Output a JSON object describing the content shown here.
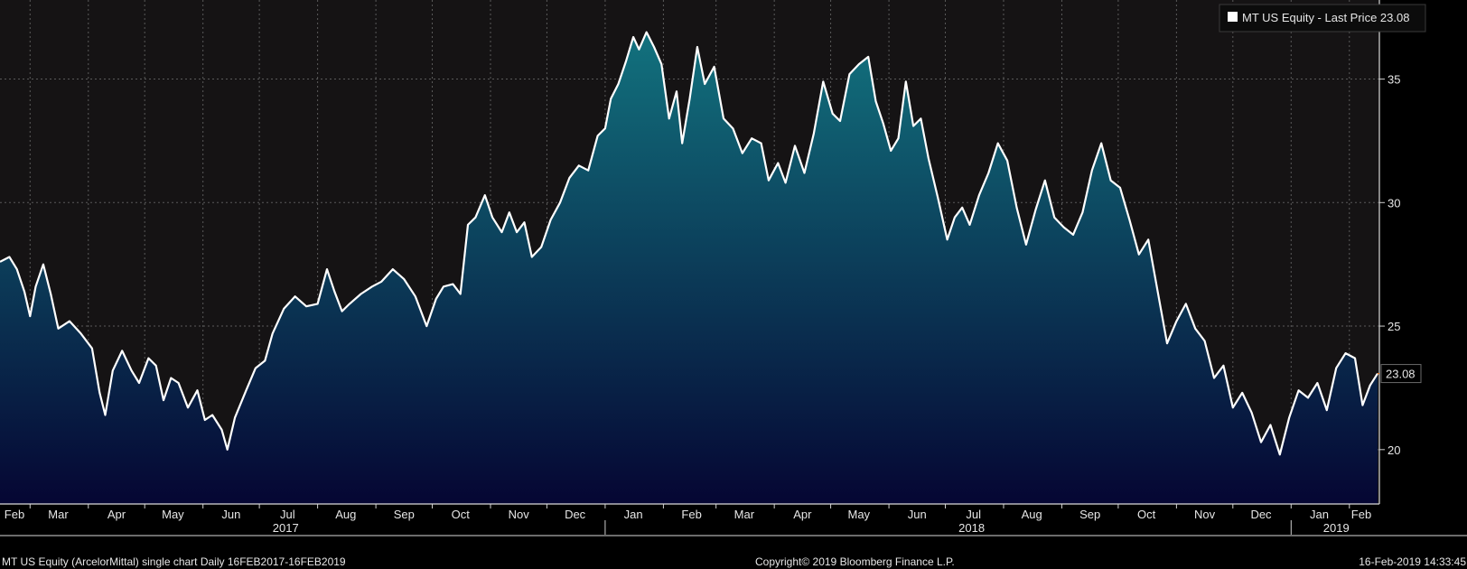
{
  "legend": {
    "label": "MT US Equity  - Last Price 23.08",
    "swatch_color": "#ffffff"
  },
  "last_price_label": "23.08",
  "footer": {
    "left": "MT US Equity (ArcelorMittal) single chart  Daily 16FEB2017-16FEB2019",
    "center": "Copyright© 2019 Bloomberg Finance L.P.",
    "right": "16-Feb-2019 14:33:45"
  },
  "colors": {
    "background": "#000000",
    "plot_background": "#151314",
    "line": "#ffffff",
    "fill_top": "#12727e",
    "fill_bottom": "#050633",
    "grid": "#5a5a5a",
    "last_price_marker": "#f07a1e"
  },
  "chart_data": {
    "type": "area",
    "title": "",
    "xlabel": "",
    "ylabel": "",
    "ylim": [
      17.8,
      38.2
    ],
    "yticks": [
      20,
      25,
      30,
      35
    ],
    "grid": true,
    "legend_position": "top-right",
    "x_range": [
      "2017-02-13",
      "2019-02-16"
    ],
    "x_month_ticks": [
      {
        "label": "Feb",
        "date": "2017-02-01"
      },
      {
        "label": "Mar",
        "date": "2017-03-01"
      },
      {
        "label": "Apr",
        "date": "2017-04-01"
      },
      {
        "label": "May",
        "date": "2017-05-01"
      },
      {
        "label": "Jun",
        "date": "2017-06-01"
      },
      {
        "label": "Jul",
        "date": "2017-07-01"
      },
      {
        "label": "Aug",
        "date": "2017-08-01"
      },
      {
        "label": "Sep",
        "date": "2017-09-01"
      },
      {
        "label": "Oct",
        "date": "2017-10-01"
      },
      {
        "label": "Nov",
        "date": "2017-11-01"
      },
      {
        "label": "Dec",
        "date": "2017-12-01"
      },
      {
        "label": "Jan",
        "date": "2018-01-01"
      },
      {
        "label": "Feb",
        "date": "2018-02-01"
      },
      {
        "label": "Mar",
        "date": "2018-03-01"
      },
      {
        "label": "Apr",
        "date": "2018-04-01"
      },
      {
        "label": "May",
        "date": "2018-05-01"
      },
      {
        "label": "Jun",
        "date": "2018-06-01"
      },
      {
        "label": "Jul",
        "date": "2018-07-01"
      },
      {
        "label": "Aug",
        "date": "2018-08-01"
      },
      {
        "label": "Sep",
        "date": "2018-09-01"
      },
      {
        "label": "Oct",
        "date": "2018-10-01"
      },
      {
        "label": "Nov",
        "date": "2018-11-01"
      },
      {
        "label": "Dec",
        "date": "2018-12-01"
      },
      {
        "label": "Jan",
        "date": "2019-01-01"
      },
      {
        "label": "Feb",
        "date": "2019-02-01"
      }
    ],
    "x_year_ticks": [
      {
        "label": "2017",
        "date": "2017-07-15"
      },
      {
        "label": "2018",
        "date": "2018-07-15"
      },
      {
        "label": "2019",
        "date": "2019-01-25"
      }
    ],
    "x_year_dividers": [
      "2018-01-01",
      "2019-01-01"
    ],
    "series": [
      {
        "name": "MT US Equity",
        "last_value": 23.08,
        "points": [
          [
            "2017-02-13",
            27.6
          ],
          [
            "2017-02-18",
            27.8
          ],
          [
            "2017-02-22",
            27.3
          ],
          [
            "2017-02-26",
            26.4
          ],
          [
            "2017-03-01",
            25.4
          ],
          [
            "2017-03-04",
            26.6
          ],
          [
            "2017-03-08",
            27.5
          ],
          [
            "2017-03-12",
            26.3
          ],
          [
            "2017-03-16",
            24.9
          ],
          [
            "2017-03-22",
            25.2
          ],
          [
            "2017-03-28",
            24.7
          ],
          [
            "2017-04-03",
            24.1
          ],
          [
            "2017-04-07",
            22.3
          ],
          [
            "2017-04-10",
            21.4
          ],
          [
            "2017-04-14",
            23.2
          ],
          [
            "2017-04-19",
            24.0
          ],
          [
            "2017-04-24",
            23.2
          ],
          [
            "2017-04-28",
            22.7
          ],
          [
            "2017-05-03",
            23.7
          ],
          [
            "2017-05-07",
            23.4
          ],
          [
            "2017-05-11",
            22.0
          ],
          [
            "2017-05-15",
            22.9
          ],
          [
            "2017-05-19",
            22.7
          ],
          [
            "2017-05-24",
            21.7
          ],
          [
            "2017-05-29",
            22.4
          ],
          [
            "2017-06-02",
            21.2
          ],
          [
            "2017-06-06",
            21.4
          ],
          [
            "2017-06-11",
            20.8
          ],
          [
            "2017-06-14",
            20.0
          ],
          [
            "2017-06-18",
            21.3
          ],
          [
            "2017-06-24",
            22.4
          ],
          [
            "2017-06-29",
            23.3
          ],
          [
            "2017-07-04",
            23.6
          ],
          [
            "2017-07-08",
            24.7
          ],
          [
            "2017-07-14",
            25.7
          ],
          [
            "2017-07-20",
            26.2
          ],
          [
            "2017-07-26",
            25.8
          ],
          [
            "2017-08-01",
            25.9
          ],
          [
            "2017-08-06",
            27.3
          ],
          [
            "2017-08-10",
            26.4
          ],
          [
            "2017-08-14",
            25.6
          ],
          [
            "2017-08-18",
            25.9
          ],
          [
            "2017-08-24",
            26.3
          ],
          [
            "2017-08-30",
            26.6
          ],
          [
            "2017-09-04",
            26.8
          ],
          [
            "2017-09-10",
            27.3
          ],
          [
            "2017-09-16",
            26.9
          ],
          [
            "2017-09-22",
            26.2
          ],
          [
            "2017-09-28",
            25.0
          ],
          [
            "2017-10-03",
            26.1
          ],
          [
            "2017-10-07",
            26.6
          ],
          [
            "2017-10-12",
            26.7
          ],
          [
            "2017-10-16",
            26.3
          ],
          [
            "2017-10-20",
            29.1
          ],
          [
            "2017-10-24",
            29.4
          ],
          [
            "2017-10-29",
            30.3
          ],
          [
            "2017-11-02",
            29.4
          ],
          [
            "2017-11-07",
            28.8
          ],
          [
            "2017-11-11",
            29.6
          ],
          [
            "2017-11-15",
            28.8
          ],
          [
            "2017-11-19",
            29.2
          ],
          [
            "2017-11-23",
            27.8
          ],
          [
            "2017-11-28",
            28.2
          ],
          [
            "2017-12-03",
            29.3
          ],
          [
            "2017-12-08",
            30.0
          ],
          [
            "2017-12-13",
            31.0
          ],
          [
            "2017-12-18",
            31.5
          ],
          [
            "2017-12-23",
            31.3
          ],
          [
            "2017-12-28",
            32.7
          ],
          [
            "2018-01-01",
            33.0
          ],
          [
            "2018-01-04",
            34.2
          ],
          [
            "2018-01-08",
            34.8
          ],
          [
            "2018-01-12",
            35.7
          ],
          [
            "2018-01-16",
            36.7
          ],
          [
            "2018-01-19",
            36.2
          ],
          [
            "2018-01-23",
            36.9
          ],
          [
            "2018-01-27",
            36.3
          ],
          [
            "2018-01-31",
            35.6
          ],
          [
            "2018-02-04",
            33.4
          ],
          [
            "2018-02-08",
            34.5
          ],
          [
            "2018-02-11",
            32.4
          ],
          [
            "2018-02-15",
            34.2
          ],
          [
            "2018-02-19",
            36.3
          ],
          [
            "2018-02-23",
            34.8
          ],
          [
            "2018-02-28",
            35.5
          ],
          [
            "2018-03-05",
            33.4
          ],
          [
            "2018-03-10",
            33.0
          ],
          [
            "2018-03-15",
            32.0
          ],
          [
            "2018-03-20",
            32.6
          ],
          [
            "2018-03-25",
            32.4
          ],
          [
            "2018-03-29",
            30.9
          ],
          [
            "2018-04-03",
            31.6
          ],
          [
            "2018-04-07",
            30.8
          ],
          [
            "2018-04-12",
            32.3
          ],
          [
            "2018-04-17",
            31.2
          ],
          [
            "2018-04-22",
            32.8
          ],
          [
            "2018-04-27",
            34.9
          ],
          [
            "2018-05-02",
            33.6
          ],
          [
            "2018-05-06",
            33.3
          ],
          [
            "2018-05-11",
            35.2
          ],
          [
            "2018-05-16",
            35.6
          ],
          [
            "2018-05-21",
            35.9
          ],
          [
            "2018-05-25",
            34.1
          ],
          [
            "2018-05-29",
            33.2
          ],
          [
            "2018-06-02",
            32.1
          ],
          [
            "2018-06-06",
            32.6
          ],
          [
            "2018-06-10",
            34.9
          ],
          [
            "2018-06-14",
            33.1
          ],
          [
            "2018-06-18",
            33.4
          ],
          [
            "2018-06-22",
            31.8
          ],
          [
            "2018-06-27",
            30.2
          ],
          [
            "2018-07-02",
            28.5
          ],
          [
            "2018-07-06",
            29.4
          ],
          [
            "2018-07-10",
            29.8
          ],
          [
            "2018-07-14",
            29.1
          ],
          [
            "2018-07-19",
            30.3
          ],
          [
            "2018-07-24",
            31.2
          ],
          [
            "2018-07-29",
            32.4
          ],
          [
            "2018-08-03",
            31.7
          ],
          [
            "2018-08-08",
            29.8
          ],
          [
            "2018-08-13",
            28.3
          ],
          [
            "2018-08-18",
            29.7
          ],
          [
            "2018-08-23",
            30.9
          ],
          [
            "2018-08-28",
            29.4
          ],
          [
            "2018-09-02",
            29.0
          ],
          [
            "2018-09-07",
            28.7
          ],
          [
            "2018-09-12",
            29.6
          ],
          [
            "2018-09-17",
            31.3
          ],
          [
            "2018-09-22",
            32.4
          ],
          [
            "2018-09-27",
            30.9
          ],
          [
            "2018-10-02",
            30.6
          ],
          [
            "2018-10-07",
            29.3
          ],
          [
            "2018-10-12",
            27.9
          ],
          [
            "2018-10-17",
            28.5
          ],
          [
            "2018-10-22",
            26.4
          ],
          [
            "2018-10-27",
            24.3
          ],
          [
            "2018-11-01",
            25.2
          ],
          [
            "2018-11-06",
            25.9
          ],
          [
            "2018-11-11",
            24.9
          ],
          [
            "2018-11-16",
            24.4
          ],
          [
            "2018-11-21",
            22.9
          ],
          [
            "2018-11-26",
            23.4
          ],
          [
            "2018-12-01",
            21.7
          ],
          [
            "2018-12-06",
            22.3
          ],
          [
            "2018-12-11",
            21.5
          ],
          [
            "2018-12-16",
            20.3
          ],
          [
            "2018-12-21",
            21.0
          ],
          [
            "2018-12-26",
            19.8
          ],
          [
            "2018-12-31",
            21.3
          ],
          [
            "2019-01-05",
            22.4
          ],
          [
            "2019-01-10",
            22.1
          ],
          [
            "2019-01-15",
            22.7
          ],
          [
            "2019-01-20",
            21.6
          ],
          [
            "2019-01-25",
            23.3
          ],
          [
            "2019-01-30",
            23.9
          ],
          [
            "2019-02-04",
            23.7
          ],
          [
            "2019-02-08",
            21.8
          ],
          [
            "2019-02-12",
            22.6
          ],
          [
            "2019-02-16",
            23.08
          ]
        ]
      }
    ]
  }
}
